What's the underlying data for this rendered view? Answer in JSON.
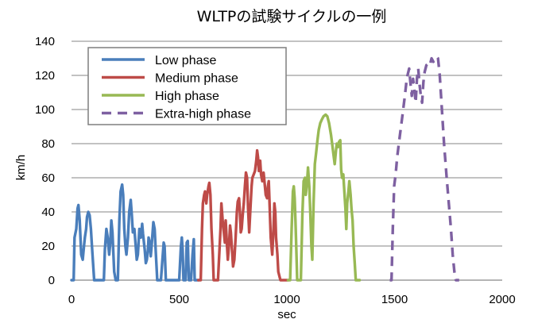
{
  "chart_data": {
    "type": "line",
    "title": "WLTPの試験サイクルの一例",
    "xlabel": "sec",
    "ylabel": "km/h",
    "xlim": [
      0,
      2000
    ],
    "ylim": [
      0,
      140
    ],
    "xticks": [
      0,
      500,
      1000,
      1500,
      2000
    ],
    "yticks": [
      0,
      20,
      40,
      60,
      80,
      100,
      120,
      140
    ],
    "grid": "horizontal",
    "legend_position": "top-left",
    "series": [
      {
        "name": "Low phase",
        "color": "#4a7ebb",
        "dash": "solid",
        "points": [
          [
            0,
            0
          ],
          [
            10,
            0
          ],
          [
            14,
            25
          ],
          [
            22,
            30
          ],
          [
            28,
            42
          ],
          [
            32,
            44
          ],
          [
            38,
            35
          ],
          [
            45,
            15
          ],
          [
            52,
            12
          ],
          [
            58,
            20
          ],
          [
            62,
            25
          ],
          [
            68,
            30
          ],
          [
            72,
            37
          ],
          [
            78,
            40
          ],
          [
            84,
            38
          ],
          [
            90,
            30
          ],
          [
            95,
            20
          ],
          [
            100,
            10
          ],
          [
            105,
            0
          ],
          [
            150,
            0
          ],
          [
            155,
            18
          ],
          [
            162,
            30
          ],
          [
            168,
            25
          ],
          [
            175,
            15
          ],
          [
            180,
            22
          ],
          [
            185,
            35
          ],
          [
            190,
            28
          ],
          [
            198,
            5
          ],
          [
            205,
            0
          ],
          [
            215,
            0
          ],
          [
            222,
            35
          ],
          [
            228,
            52
          ],
          [
            235,
            56
          ],
          [
            240,
            50
          ],
          [
            245,
            30
          ],
          [
            250,
            20
          ],
          [
            255,
            15
          ],
          [
            262,
            25
          ],
          [
            268,
            40
          ],
          [
            275,
            47
          ],
          [
            280,
            38
          ],
          [
            285,
            28
          ],
          [
            292,
            30
          ],
          [
            298,
            20
          ],
          [
            303,
            12
          ],
          [
            308,
            15
          ],
          [
            315,
            30
          ],
          [
            322,
            25
          ],
          [
            328,
            33
          ],
          [
            332,
            27
          ],
          [
            340,
            18
          ],
          [
            345,
            10
          ],
          [
            350,
            12
          ],
          [
            355,
            18
          ],
          [
            358,
            25
          ],
          [
            363,
            22
          ],
          [
            368,
            14
          ],
          [
            372,
            20
          ],
          [
            376,
            27
          ],
          [
            380,
            34
          ],
          [
            386,
            30
          ],
          [
            392,
            15
          ],
          [
            398,
            0
          ],
          [
            415,
            0
          ],
          [
            422,
            12
          ],
          [
            428,
            22
          ],
          [
            432,
            20
          ],
          [
            438,
            0
          ],
          [
            500,
            0
          ],
          [
            508,
            20
          ],
          [
            512,
            25
          ],
          [
            516,
            18
          ],
          [
            520,
            0
          ],
          [
            530,
            0
          ],
          [
            535,
            22
          ],
          [
            540,
            23
          ],
          [
            545,
            0
          ],
          [
            555,
            0
          ],
          [
            562,
            15
          ],
          [
            568,
            24
          ],
          [
            572,
            0
          ],
          [
            589,
            0
          ]
        ]
      },
      {
        "name": "Medium phase",
        "color": "#be4b48",
        "dash": "solid",
        "points": [
          [
            589,
            0
          ],
          [
            600,
            0
          ],
          [
            606,
            30
          ],
          [
            610,
            45
          ],
          [
            616,
            50
          ],
          [
            620,
            52
          ],
          [
            626,
            45
          ],
          [
            630,
            50
          ],
          [
            636,
            55
          ],
          [
            640,
            57
          ],
          [
            645,
            50
          ],
          [
            650,
            30
          ],
          [
            656,
            15
          ],
          [
            660,
            0
          ],
          [
            680,
            0
          ],
          [
            686,
            15
          ],
          [
            692,
            30
          ],
          [
            696,
            45
          ],
          [
            702,
            35
          ],
          [
            706,
            30
          ],
          [
            712,
            22
          ],
          [
            716,
            35
          ],
          [
            722,
            20
          ],
          [
            726,
            12
          ],
          [
            732,
            22
          ],
          [
            736,
            32
          ],
          [
            740,
            28
          ],
          [
            745,
            18
          ],
          [
            750,
            8
          ],
          [
            756,
            12
          ],
          [
            762,
            25
          ],
          [
            768,
            40
          ],
          [
            772,
            46
          ],
          [
            778,
            48
          ],
          [
            782,
            40
          ],
          [
            786,
            28
          ],
          [
            790,
            30
          ],
          [
            795,
            38
          ],
          [
            800,
            45
          ],
          [
            805,
            55
          ],
          [
            810,
            63
          ],
          [
            815,
            60
          ],
          [
            820,
            42
          ],
          [
            825,
            28
          ],
          [
            830,
            40
          ],
          [
            836,
            55
          ],
          [
            840,
            60
          ],
          [
            846,
            62
          ],
          [
            852,
            64
          ],
          [
            858,
            70
          ],
          [
            862,
            76
          ],
          [
            866,
            72
          ],
          [
            870,
            64
          ],
          [
            876,
            70
          ],
          [
            880,
            62
          ],
          [
            886,
            58
          ],
          [
            892,
            63
          ],
          [
            898,
            55
          ],
          [
            902,
            50
          ],
          [
            908,
            48
          ],
          [
            912,
            55
          ],
          [
            916,
            58
          ],
          [
            920,
            44
          ],
          [
            925,
            25
          ],
          [
            932,
            15
          ],
          [
            938,
            30
          ],
          [
            942,
            45
          ],
          [
            946,
            40
          ],
          [
            950,
            25
          ],
          [
            956,
            15
          ],
          [
            960,
            5
          ],
          [
            970,
            0
          ],
          [
            1005,
            0
          ]
        ]
      },
      {
        "name": "High phase",
        "color": "#98b954",
        "dash": "solid",
        "points": [
          [
            1005,
            0
          ],
          [
            1015,
            0
          ],
          [
            1022,
            30
          ],
          [
            1028,
            52
          ],
          [
            1032,
            55
          ],
          [
            1036,
            48
          ],
          [
            1040,
            35
          ],
          [
            1044,
            18
          ],
          [
            1048,
            0
          ],
          [
            1065,
            0
          ],
          [
            1072,
            38
          ],
          [
            1078,
            58
          ],
          [
            1084,
            60
          ],
          [
            1088,
            50
          ],
          [
            1094,
            58
          ],
          [
            1098,
            66
          ],
          [
            1104,
            55
          ],
          [
            1108,
            42
          ],
          [
            1114,
            20
          ],
          [
            1118,
            12
          ],
          [
            1124,
            45
          ],
          [
            1130,
            68
          ],
          [
            1136,
            75
          ],
          [
            1142,
            82
          ],
          [
            1148,
            88
          ],
          [
            1155,
            92
          ],
          [
            1162,
            94
          ],
          [
            1170,
            96
          ],
          [
            1180,
            97
          ],
          [
            1188,
            96
          ],
          [
            1196,
            92
          ],
          [
            1205,
            85
          ],
          [
            1212,
            78
          ],
          [
            1218,
            72
          ],
          [
            1222,
            68
          ],
          [
            1228,
            76
          ],
          [
            1232,
            80
          ],
          [
            1238,
            78
          ],
          [
            1242,
            81
          ],
          [
            1248,
            82
          ],
          [
            1252,
            65
          ],
          [
            1256,
            60
          ],
          [
            1262,
            62
          ],
          [
            1268,
            50
          ],
          [
            1272,
            42
          ],
          [
            1276,
            30
          ],
          [
            1280,
            45
          ],
          [
            1286,
            52
          ],
          [
            1290,
            58
          ],
          [
            1296,
            50
          ],
          [
            1300,
            42
          ],
          [
            1305,
            35
          ],
          [
            1310,
            20
          ],
          [
            1315,
            10
          ],
          [
            1320,
            0
          ],
          [
            1338,
            0
          ]
        ]
      },
      {
        "name": "Extra-high phase",
        "color": "#7e60a1",
        "dash": "dashed",
        "points": [
          [
            1478,
            0
          ],
          [
            1486,
            0
          ],
          [
            1492,
            30
          ],
          [
            1498,
            55
          ],
          [
            1505,
            62
          ],
          [
            1512,
            72
          ],
          [
            1520,
            80
          ],
          [
            1528,
            88
          ],
          [
            1536,
            96
          ],
          [
            1542,
            102
          ],
          [
            1548,
            108
          ],
          [
            1555,
            116
          ],
          [
            1560,
            120
          ],
          [
            1568,
            124
          ],
          [
            1574,
            115
          ],
          [
            1580,
            108
          ],
          [
            1586,
            118
          ],
          [
            1592,
            112
          ],
          [
            1598,
            104
          ],
          [
            1604,
            118
          ],
          [
            1610,
            124
          ],
          [
            1616,
            115
          ],
          [
            1622,
            108
          ],
          [
            1628,
            104
          ],
          [
            1634,
            116
          ],
          [
            1640,
            122
          ],
          [
            1648,
            126
          ],
          [
            1656,
            127
          ],
          [
            1664,
            126
          ],
          [
            1672,
            130
          ],
          [
            1680,
            128
          ],
          [
            1688,
            129
          ],
          [
            1696,
            131
          ],
          [
            1702,
            130
          ],
          [
            1710,
            120
          ],
          [
            1720,
            100
          ],
          [
            1730,
            80
          ],
          [
            1742,
            60
          ],
          [
            1752,
            45
          ],
          [
            1762,
            30
          ],
          [
            1770,
            15
          ],
          [
            1778,
            5
          ],
          [
            1785,
            0
          ],
          [
            1800,
            0
          ]
        ]
      }
    ]
  }
}
